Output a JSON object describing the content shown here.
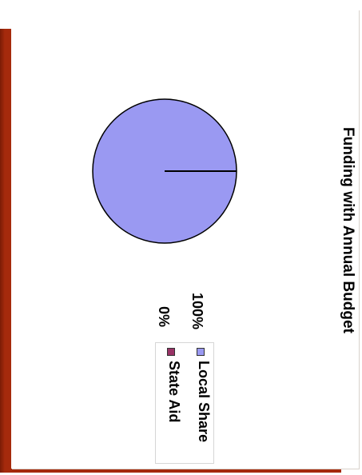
{
  "chart_data": {
    "type": "pie",
    "title": "Funding with Annual Budget",
    "labels": [
      "Local Share",
      "State Aid"
    ],
    "values": [
      100,
      0
    ],
    "percent_labels": [
      "100%",
      "0%"
    ],
    "colors": [
      "#9a99f2",
      "#993366"
    ],
    "legend": "right"
  }
}
